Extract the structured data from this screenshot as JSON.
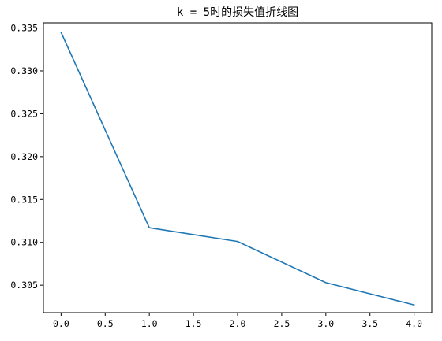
{
  "chart_data": {
    "type": "line",
    "title": "k = 5时的损失值折线图",
    "xlabel": "",
    "ylabel": "",
    "x": [
      0,
      1,
      2,
      3,
      4
    ],
    "series": [
      {
        "values": [
          0.3345,
          0.3117,
          0.3101,
          0.3053,
          0.3027
        ],
        "color": "#1f77b4"
      }
    ],
    "xlim": [
      -0.2,
      4.2
    ],
    "ylim": [
      0.3018,
      0.3356
    ],
    "xticks": [
      0.0,
      0.5,
      1.0,
      1.5,
      2.0,
      2.5,
      3.0,
      3.5,
      4.0
    ],
    "xtick_labels": [
      "0.0",
      "0.5",
      "1.0",
      "1.5",
      "2.0",
      "2.5",
      "3.0",
      "3.5",
      "4.0"
    ],
    "yticks": [
      0.305,
      0.31,
      0.315,
      0.32,
      0.325,
      0.33,
      0.335
    ],
    "ytick_labels": [
      "0.305",
      "0.310",
      "0.315",
      "0.320",
      "0.325",
      "0.330",
      "0.335"
    ],
    "grid": false,
    "legend": "none"
  }
}
